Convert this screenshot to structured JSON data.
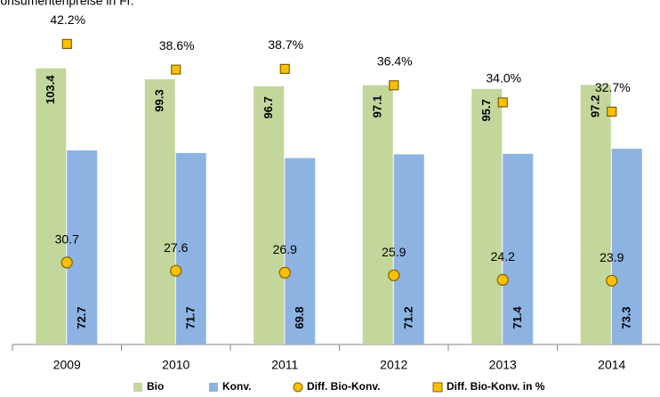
{
  "chart_data": {
    "type": "bar",
    "title": "Konsumentenpreise in Fr.",
    "categories": [
      "2009",
      "2010",
      "2011",
      "2012",
      "2013",
      "2014"
    ],
    "ylim": [
      0,
      120
    ],
    "y2lim": [
      0,
      45
    ],
    "series": [
      {
        "name": "Bio",
        "marker": "bar",
        "color": "#c3d69b",
        "values": [
          103.4,
          99.3,
          96.7,
          97.1,
          95.7,
          97.2
        ]
      },
      {
        "name": "Konv.",
        "marker": "bar",
        "color": "#8db3e2",
        "values": [
          72.7,
          71.7,
          69.8,
          71.2,
          71.4,
          73.3
        ]
      },
      {
        "name": "Diff. Bio-Konv.",
        "marker": "circle",
        "color": "#ffc000",
        "values": [
          30.7,
          27.6,
          26.9,
          25.9,
          24.2,
          23.9
        ]
      },
      {
        "name": "Diff. Bio-Konv. in %",
        "marker": "square",
        "color": "#ffc000",
        "axis": "y2",
        "values": [
          42.2,
          38.6,
          38.7,
          36.4,
          34.0,
          32.7
        ],
        "value_labels": [
          "42.2%",
          "38.6%",
          "38.7%",
          "36.4%",
          "34.0%",
          "32.7%"
        ]
      }
    ]
  }
}
